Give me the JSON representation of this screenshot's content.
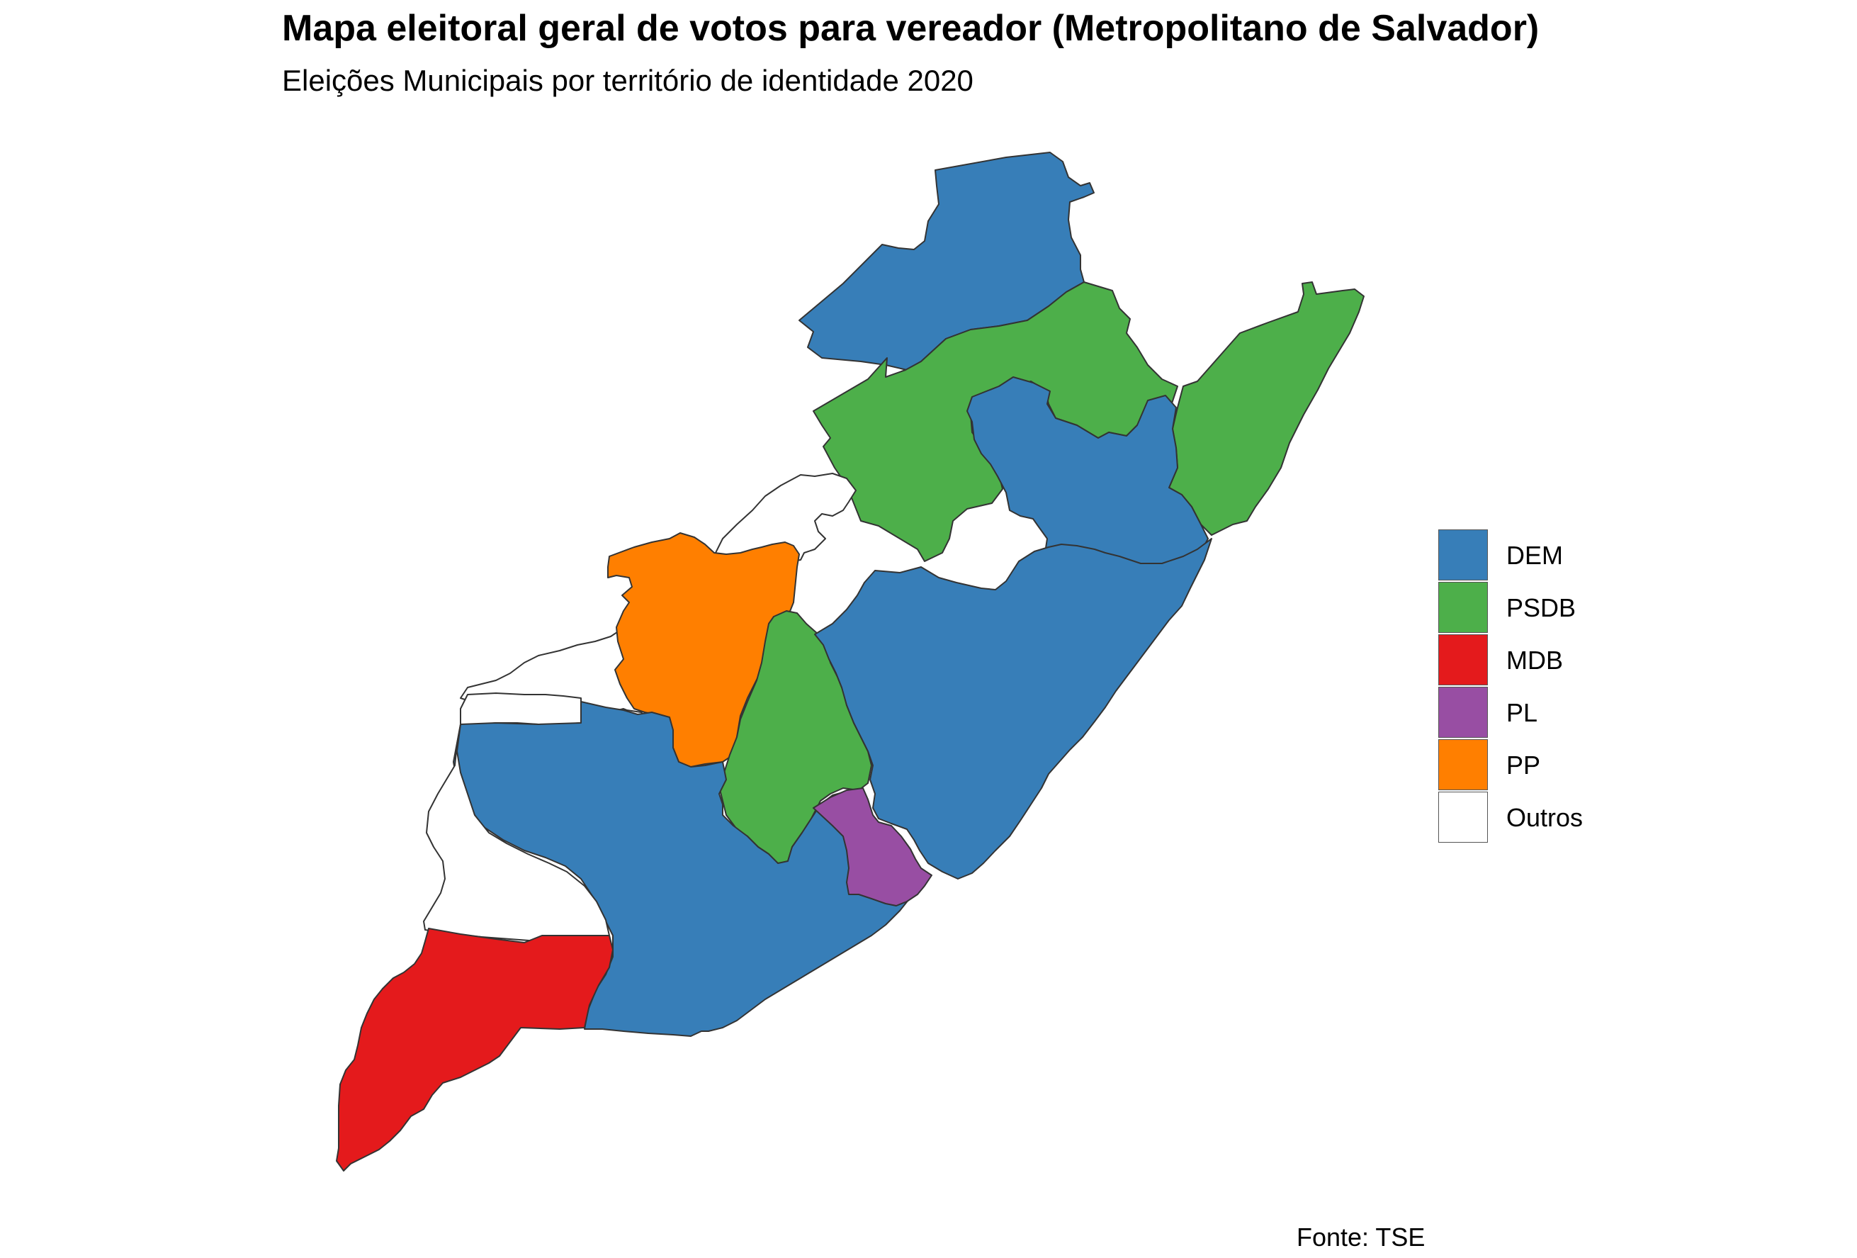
{
  "title": "Mapa eleitoral geral de votos para vereador (Metropolitano de Salvador)",
  "subtitle": "Eleições Municipais por território de identidade 2020",
  "source": "Fonte: TSE",
  "legend": {
    "items": [
      {
        "label": "DEM",
        "color": "#377EB8"
      },
      {
        "label": "PSDB",
        "color": "#4DAF4A"
      },
      {
        "label": "MDB",
        "color": "#E41A1C"
      },
      {
        "label": "PL",
        "color": "#984EA3"
      },
      {
        "label": "PP",
        "color": "#FF7F00"
      },
      {
        "label": "Outros",
        "color": "#FFFFFF"
      }
    ]
  },
  "regions": [
    {
      "id": "north-top",
      "party": "DEM"
    },
    {
      "id": "north-central",
      "party": "PSDB"
    },
    {
      "id": "northeast-coast",
      "party": "PSDB"
    },
    {
      "id": "central-east",
      "party": "DEM"
    },
    {
      "id": "upper-west-blank",
      "party": "Outros"
    },
    {
      "id": "west",
      "party": "PP"
    },
    {
      "id": "central-south",
      "party": "PSDB"
    },
    {
      "id": "coastal-large",
      "party": "DEM"
    },
    {
      "id": "southwest-top-blank",
      "party": "Outros"
    },
    {
      "id": "southwest-large",
      "party": "DEM"
    },
    {
      "id": "southwest-blank",
      "party": "Outros"
    },
    {
      "id": "south-coast-small",
      "party": "PL"
    },
    {
      "id": "southwest-tip",
      "party": "MDB"
    }
  ]
}
